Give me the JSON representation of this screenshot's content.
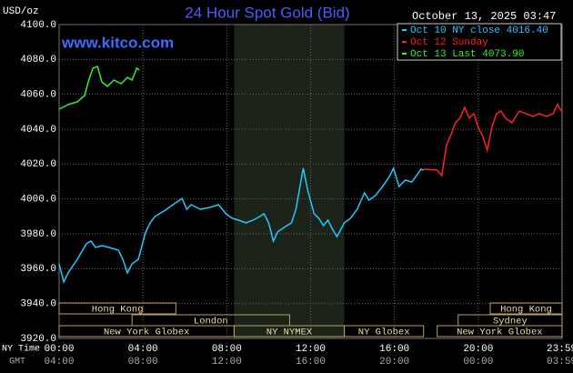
{
  "chart_data": {
    "type": "line",
    "title": "24 Hour Spot Gold (Bid)",
    "timestamp": "October 13, 2025 03:47",
    "watermark": "www.kitco.com",
    "y_label": "USD/oz",
    "x_row_labels": [
      "NY Time",
      "GMT"
    ],
    "xlim": [
      0,
      24
    ],
    "ylim": [
      3920,
      4100
    ],
    "grid": true,
    "xticks": [
      {
        "value": 0,
        "label": "00:00"
      },
      {
        "value": 4,
        "label": "04:00"
      },
      {
        "value": 8,
        "label": "08:00"
      },
      {
        "value": 12,
        "label": "12:00"
      },
      {
        "value": 16,
        "label": "16:00"
      },
      {
        "value": 20,
        "label": "20:00"
      },
      {
        "value": 23.98,
        "label": "23:59"
      }
    ],
    "gmt_ticks": [
      {
        "value": 0,
        "label": "04:00"
      },
      {
        "value": 4,
        "label": "08:00"
      },
      {
        "value": 8,
        "label": "12:00"
      },
      {
        "value": 12,
        "label": "16:00"
      },
      {
        "value": 16,
        "label": "20:00"
      },
      {
        "value": 20,
        "label": "00:00"
      },
      {
        "value": 23.98,
        "label": "03:59"
      }
    ],
    "yticks": [
      {
        "value": 3920,
        "label": "3920.0"
      },
      {
        "value": 3940,
        "label": "3940.0"
      },
      {
        "value": 3960,
        "label": "3960.0"
      },
      {
        "value": 3980,
        "label": "3980.0"
      },
      {
        "value": 4000,
        "label": "4000.0"
      },
      {
        "value": 4020,
        "label": "4020.0"
      },
      {
        "value": 4040,
        "label": "4040.0"
      },
      {
        "value": 4060,
        "label": "4060.0"
      },
      {
        "value": 4080,
        "label": "4080.0"
      },
      {
        "value": 4100,
        "label": "4100.0"
      }
    ],
    "shaded_range": [
      8.35,
      13.61
    ],
    "sessions": [
      {
        "label": "Hong Kong",
        "start": 0,
        "end": 5.57,
        "row": 0
      },
      {
        "label": "Hong Kong",
        "start": 20.57,
        "end": 24,
        "row": 0
      },
      {
        "label": "London",
        "start": 3.48,
        "end": 11.0,
        "row": 1
      },
      {
        "label": "Sydney",
        "start": 19.04,
        "end": 24,
        "row": 1
      },
      {
        "label": "New York Globex",
        "start": 0,
        "end": 8.35,
        "row": 2
      },
      {
        "label": "NY NYMEX",
        "start": 8.35,
        "end": 13.61,
        "row": 2
      },
      {
        "label": "NY Globex",
        "start": 13.61,
        "end": 17.39,
        "row": 2
      },
      {
        "label": "New York Globex",
        "start": 18.04,
        "end": 24,
        "row": 2
      }
    ],
    "series": [
      {
        "name": "Oct 10 NY close 4016.40",
        "color": "#22c8ff",
        "x": [
          0,
          0.22,
          0.43,
          0.87,
          1.3,
          1.52,
          1.74,
          2.04,
          2.39,
          2.83,
          3.04,
          3.26,
          3.48,
          3.78,
          4.13,
          4.35,
          4.57,
          4.78,
          5.0,
          5.43,
          5.87,
          6.09,
          6.3,
          6.74,
          7.17,
          7.61,
          7.96,
          8.26,
          8.57,
          8.91,
          9.26,
          9.57,
          9.78,
          10.0,
          10.22,
          10.43,
          10.74,
          11.09,
          11.3,
          11.65,
          11.87,
          12.17,
          12.39,
          12.61,
          12.83,
          13.04,
          13.26,
          13.61,
          13.91,
          14.22,
          14.57,
          14.78,
          15.09,
          15.43,
          15.74,
          15.96,
          16.22,
          16.52,
          16.83,
          17.09,
          17.26,
          17.39
        ],
        "values": [
          3962.8,
          3952.4,
          3957.6,
          3965.4,
          3974.3,
          3975.8,
          3972.2,
          3973.2,
          3972.2,
          3970.6,
          3965.4,
          3957.6,
          3962.8,
          3965.4,
          3981.1,
          3986.3,
          3989.9,
          3991.5,
          3993.0,
          3996.7,
          4000.3,
          3994.1,
          3996.7,
          3994.1,
          3995.1,
          3996.7,
          3991.5,
          3988.9,
          3987.8,
          3986.3,
          3987.8,
          3989.9,
          3991.5,
          3986.3,
          3975.8,
          3981.1,
          3983.7,
          3986.3,
          3994.1,
          4017.6,
          4004.5,
          3991.5,
          3988.9,
          3984.7,
          3987.8,
          3982.6,
          3978.4,
          3986.3,
          3988.9,
          3994.1,
          4003.5,
          3999.3,
          4001.9,
          4007.1,
          4012.4,
          4017.6,
          4007.1,
          4010.8,
          4009.7,
          4013.9,
          4017.1,
          4016.4
        ]
      },
      {
        "name": "Oct 12 Sunday",
        "color": "#ff2020",
        "x": [
          17.39,
          18.04,
          18.26,
          18.48,
          18.7,
          18.91,
          19.13,
          19.35,
          19.57,
          19.78,
          20.0,
          20.22,
          20.43,
          20.65,
          20.87,
          21.09,
          21.3,
          21.61,
          21.96,
          22.3,
          22.61,
          22.91,
          23.26,
          23.57,
          23.78,
          24.0
        ],
        "values": [
          4017.1,
          4016.5,
          4013.4,
          4030.6,
          4036.9,
          4043.7,
          4046.3,
          4052.5,
          4046.3,
          4048.9,
          4041.0,
          4035.8,
          4028.0,
          4041.0,
          4048.9,
          4050.4,
          4046.3,
          4043.7,
          4050.4,
          4048.9,
          4047.3,
          4048.9,
          4047.3,
          4048.9,
          4054.1,
          4049.9
        ]
      },
      {
        "name": "Oct 13 Last 4073.90",
        "color": "#33ee33",
        "x": [
          0,
          0.43,
          0.87,
          1.22,
          1.39,
          1.61,
          1.83,
          2.04,
          2.3,
          2.61,
          2.96,
          3.26,
          3.48,
          3.7,
          3.83
        ],
        "values": [
          4051.5,
          4054.1,
          4055.7,
          4059.3,
          4067.1,
          4075.0,
          4076.0,
          4067.1,
          4064.5,
          4068.2,
          4066.1,
          4069.7,
          4068.2,
          4075.0,
          4073.9
        ]
      }
    ]
  }
}
